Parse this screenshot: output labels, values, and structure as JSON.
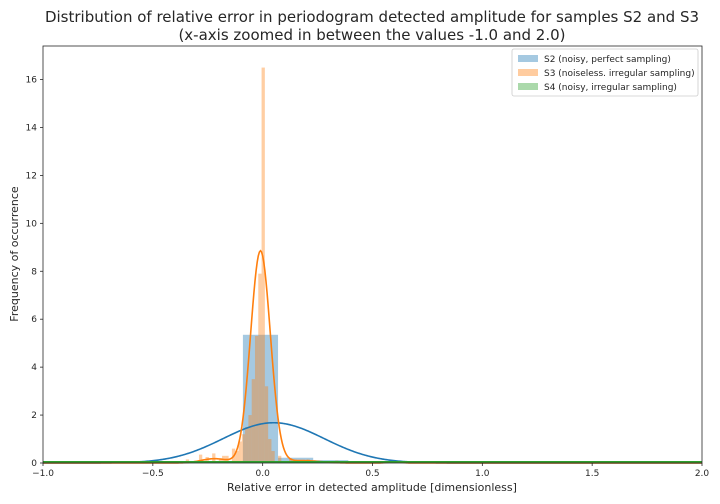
{
  "chart_data": {
    "type": "histogram",
    "title_lines": [
      "Distribution of relative error in periodogram detected amplitude for samples S2 and S3",
      "(x-axis zoomed in between the values -1.0 and 2.0)"
    ],
    "xlabel": "Relative error in detected amplitude [dimensionless]",
    "ylabel": "Frequency of occurrence",
    "xlim": [
      -1.0,
      2.0
    ],
    "ylim": [
      0,
      17.4
    ],
    "xticks": [
      -1.0,
      -0.5,
      0.0,
      0.5,
      1.0,
      1.5,
      2.0
    ],
    "xtick_labels": [
      "−1.0",
      "−0.5",
      "0.0",
      "0.5",
      "1.0",
      "1.5",
      "2.0"
    ],
    "yticks": [
      0,
      2,
      4,
      6,
      8,
      10,
      12,
      14,
      16
    ],
    "ytick_labels": [
      "0",
      "2",
      "4",
      "6",
      "8",
      "10",
      "12",
      "14",
      "16"
    ],
    "grid": false,
    "legend_position": "top-right",
    "series": [
      {
        "name": "S2 (noisy, perfect sampling)",
        "color": "#1f77b4",
        "bins": [
          {
            "x0": -0.09,
            "x1": 0.07,
            "height": 5.35
          },
          {
            "x0": 0.07,
            "x1": 0.23,
            "height": 0.22
          },
          {
            "x0": 0.23,
            "x1": 0.39,
            "height": 0.12
          },
          {
            "x0": -1.0,
            "x1": 2.0,
            "height": 0.04
          }
        ],
        "kde": {
          "type": "gaussian",
          "mean": 0.05,
          "sd": 0.23,
          "peak": 1.68
        }
      },
      {
        "name": "S3 (noiseless. irregular sampling)",
        "color": "#ff7f0e",
        "bins": [
          {
            "x0": -0.44,
            "x1": -0.425,
            "height": 0.05
          },
          {
            "x0": -0.35,
            "x1": -0.335,
            "height": 0.15
          },
          {
            "x0": -0.29,
            "x1": -0.275,
            "height": 0.35
          },
          {
            "x0": -0.26,
            "x1": -0.245,
            "height": 0.25
          },
          {
            "x0": -0.23,
            "x1": -0.215,
            "height": 0.4
          },
          {
            "x0": -0.2,
            "x1": -0.185,
            "height": 0.2
          },
          {
            "x0": -0.185,
            "x1": -0.17,
            "height": 0.3
          },
          {
            "x0": -0.17,
            "x1": -0.155,
            "height": 0.3
          },
          {
            "x0": -0.14,
            "x1": -0.125,
            "height": 0.6
          },
          {
            "x0": -0.125,
            "x1": -0.11,
            "height": 0.5
          },
          {
            "x0": -0.11,
            "x1": -0.095,
            "height": 0.9
          },
          {
            "x0": -0.095,
            "x1": -0.08,
            "height": 1.2
          },
          {
            "x0": -0.08,
            "x1": -0.065,
            "height": 1.5
          },
          {
            "x0": -0.065,
            "x1": -0.05,
            "height": 2.0
          },
          {
            "x0": -0.05,
            "x1": -0.035,
            "height": 3.5
          },
          {
            "x0": -0.035,
            "x1": -0.02,
            "height": 5.3
          },
          {
            "x0": -0.02,
            "x1": -0.005,
            "height": 7.9
          },
          {
            "x0": -0.005,
            "x1": 0.01,
            "height": 16.5
          },
          {
            "x0": 0.01,
            "x1": 0.025,
            "height": 3.2
          },
          {
            "x0": 0.025,
            "x1": 0.04,
            "height": 1.0
          },
          {
            "x0": 0.04,
            "x1": 0.055,
            "height": 0.5
          },
          {
            "x0": 0.07,
            "x1": 0.085,
            "height": 0.3
          },
          {
            "x0": 0.12,
            "x1": 0.135,
            "height": 0.2
          },
          {
            "x0": 0.2,
            "x1": 0.215,
            "height": 0.15
          },
          {
            "x0": 0.33,
            "x1": 0.345,
            "height": 0.1
          },
          {
            "x0": 0.6,
            "x1": 0.615,
            "height": 0.1
          }
        ],
        "kde": {
          "type": "gaussian_plus_tail",
          "mean": -0.01,
          "sd": 0.045,
          "peak": 8.85
        }
      },
      {
        "name": "S4 (noisy, irregular sampling)",
        "color": "#2ca02c",
        "bins": [
          {
            "x0": -1.0,
            "x1": 2.0,
            "height": 0.06
          }
        ],
        "kde": {
          "type": "flat",
          "value": 0.05
        }
      }
    ]
  }
}
